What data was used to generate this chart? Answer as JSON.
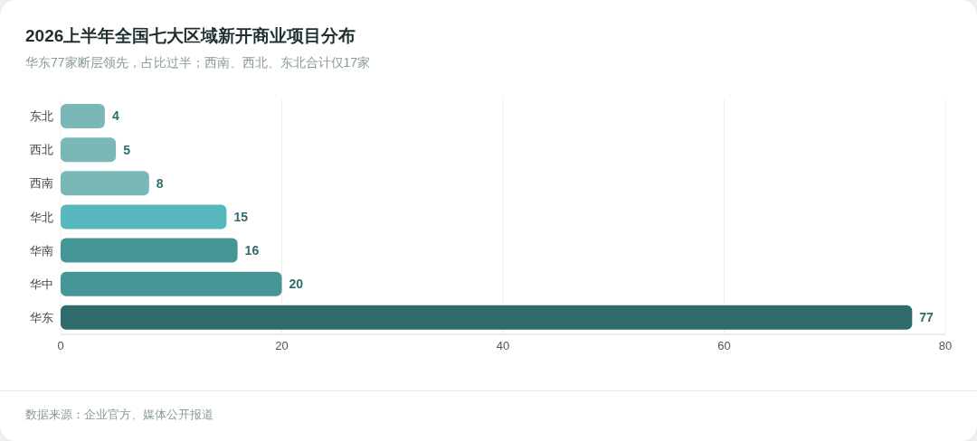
{
  "chart_data": {
    "type": "bar",
    "orientation": "horizontal",
    "title": "2026上半年全国七大区域新开商业项目分布",
    "subtitle": "华东77家断层领先，占比过半；西南、西北、东北合计仅17家",
    "categories": [
      "东北",
      "西北",
      "西南",
      "华北",
      "华南",
      "华中",
      "华东"
    ],
    "values": [
      4,
      5,
      8,
      15,
      16,
      20,
      77
    ],
    "colors": [
      "#7ab8b8",
      "#7ab8b8",
      "#7ab8b8",
      "#57b9be",
      "#469597",
      "#469597",
      "#2f6b6a"
    ],
    "xlim": [
      0,
      80
    ],
    "xticks": [
      0,
      20,
      40,
      60,
      80
    ],
    "grid": "x",
    "data_labels": true,
    "annotations": [
      "数据来源：企业官方、媒体公开报道"
    ]
  }
}
